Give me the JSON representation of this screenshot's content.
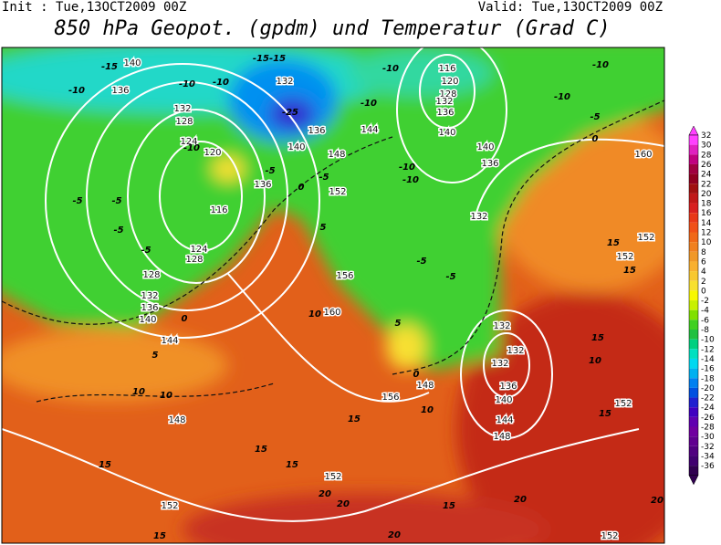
{
  "header": {
    "init": "Init : Tue,13OCT2009 00Z",
    "valid": "Valid: Tue,13OCT2009 00Z",
    "title": "850 hPa Geopot. (gpdm) und Temperatur (Grad C)"
  },
  "colorbar": {
    "ticks": [
      32,
      30,
      28,
      26,
      24,
      22,
      20,
      18,
      16,
      14,
      12,
      10,
      8,
      6,
      4,
      2,
      0,
      -2,
      -4,
      -6,
      -8,
      -10,
      -12,
      -14,
      -16,
      -18,
      -20,
      -22,
      -24,
      -26,
      -28,
      -30,
      -32,
      -34,
      -36
    ],
    "colors": [
      "#ff40ff",
      "#e020c0",
      "#c00080",
      "#a00040",
      "#900020",
      "#a01010",
      "#c01818",
      "#d82020",
      "#e83818",
      "#f05018",
      "#f06818",
      "#f08020",
      "#f09828",
      "#f8b030",
      "#f8c830",
      "#f8e030",
      "#f8f800",
      "#c8f000",
      "#80e000",
      "#40d020",
      "#20c040",
      "#00d080",
      "#00e0c0",
      "#00d8f0",
      "#00b0f0",
      "#0080f0",
      "#0050e0",
      "#2020d0",
      "#4000c0",
      "#6000b0",
      "#7000a0",
      "#600090",
      "#500080",
      "#400070",
      "#300050"
    ]
  },
  "map": {
    "geopotential_labels": [
      "140",
      "136",
      "132",
      "128",
      "124",
      "120",
      "116",
      "124",
      "128",
      "128",
      "132",
      "136",
      "140",
      "144",
      "148",
      "152",
      "152",
      "156",
      "156",
      "160",
      "152",
      "148",
      "144",
      "140",
      "136",
      "140",
      "132",
      "116",
      "120",
      "128",
      "132",
      "136",
      "132",
      "136",
      "140",
      "136",
      "148",
      "132",
      "132",
      "132",
      "136",
      "140",
      "144",
      "148",
      "152",
      "152",
      "152",
      "152",
      "160"
    ],
    "temperature_labels": [
      "-15",
      "-10",
      "-10",
      "-10",
      "-15-15",
      "-25",
      "-10",
      "-10",
      "-10",
      "-10",
      "-5",
      "0",
      "-5",
      "-5",
      "-5",
      "-5",
      "0",
      "5",
      "10",
      "15",
      "15",
      "15",
      "20",
      "20",
      "15",
      "20",
      "20",
      "15",
      "15",
      "10",
      "15",
      "10",
      "15",
      "10",
      "0",
      "5",
      "-5",
      "-5",
      "-10",
      "-10",
      "-5",
      "0",
      "-5",
      "-10",
      "15",
      "20",
      "15",
      "5",
      "10"
    ]
  }
}
